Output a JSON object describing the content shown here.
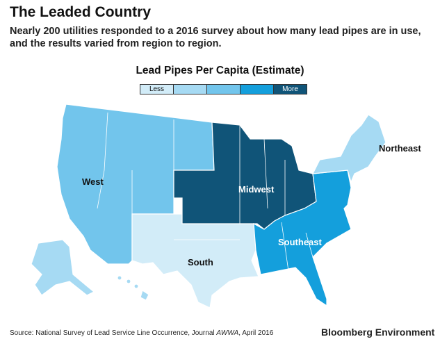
{
  "title": "The Leaded Country",
  "subtitle": "Nearly 200 utilities responded to a 2016 survey about how many lead pipes are in use, and the results varied from region to region.",
  "legend": {
    "title": "Lead Pipes Per Capita (Estimate)",
    "low_label": "Less",
    "high_label": "More",
    "colors": [
      "#d2ecf8",
      "#a6daf3",
      "#72c5ec",
      "#149fdc",
      "#105478"
    ]
  },
  "regions": {
    "west": "West",
    "midwest": "Midwest",
    "northeast": "Northeast",
    "southeast": "Southeast",
    "south": "South"
  },
  "source": {
    "prefix": "Source: National Survey of Lead Service Line Occurrence, Journal ",
    "journal": "AWWA",
    "suffix": ", April 2016"
  },
  "brand": "Bloomberg Environment"
}
